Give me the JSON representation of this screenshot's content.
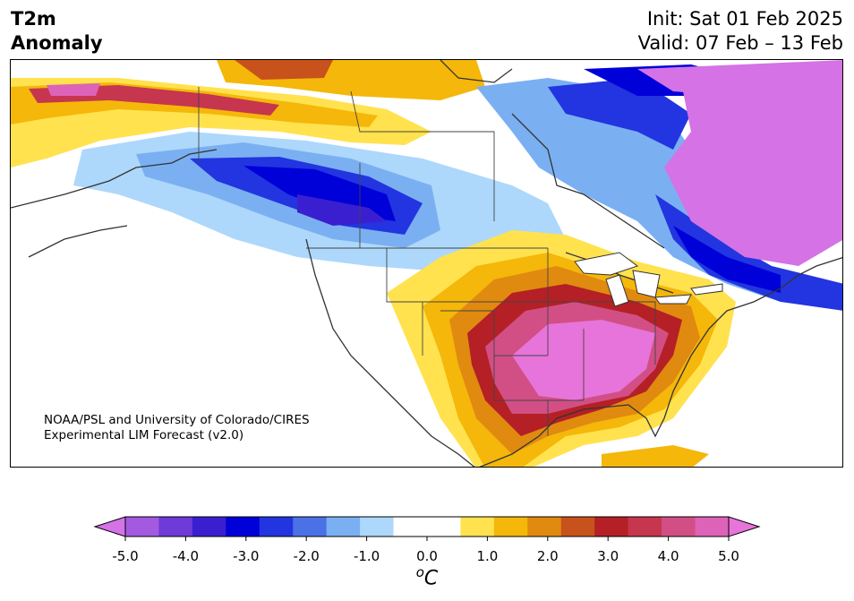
{
  "header": {
    "variable_line1": "T2m",
    "variable_line2": "Anomaly",
    "init": "Init: Sat 01 Feb 2025",
    "valid": "Valid: 07 Feb – 13 Feb"
  },
  "credit": {
    "line1": "NOAA/PSL and University of Colorado/CIRES",
    "line2": "Experimental LIM Forecast (v2.0)"
  },
  "colorbar": {
    "units_base": "C",
    "units_sup": "o",
    "ticks": [
      "-5.0",
      "-4.0",
      "-3.0",
      "-2.0",
      "-1.0",
      "0.0",
      "1.0",
      "2.0",
      "3.0",
      "4.0",
      "5.0"
    ],
    "colors": [
      "#a35ae0",
      "#6e3ad8",
      "#3a1fd0",
      "#0000d8",
      "#2235e0",
      "#4a72e6",
      "#7ab0f2",
      "#add8fb",
      "#ffffff",
      "#ffffff",
      "#ffe24e",
      "#f4b70a",
      "#e08a10",
      "#c8521c",
      "#b42025",
      "#c6364e",
      "#d24f86",
      "#dc63b8"
    ],
    "under_color": "#d572e6",
    "over_color": "#e774da"
  }
}
